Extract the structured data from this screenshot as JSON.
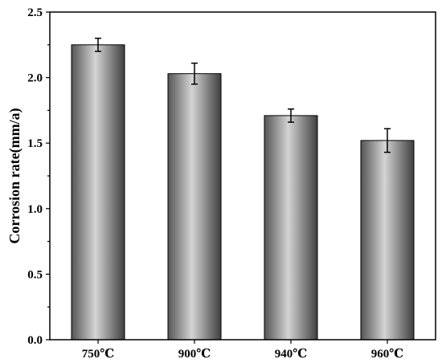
{
  "chart_data": {
    "type": "bar",
    "title": "",
    "xlabel": "",
    "ylabel": "Corrosion rate(mm/a)",
    "categories": [
      "750℃",
      "900℃",
      "940℃",
      "960℃"
    ],
    "values": [
      2.25,
      2.03,
      1.71,
      1.52
    ],
    "errors": [
      0.05,
      0.08,
      0.05,
      0.09
    ],
    "ylim": [
      0.0,
      2.5
    ],
    "yticks": [
      "0.0",
      "0.5",
      "1.0",
      "1.5",
      "2.0",
      "2.5"
    ],
    "ytick_values": [
      0.0,
      0.5,
      1.0,
      1.5,
      2.0,
      2.5
    ],
    "grid": false,
    "legend": "none",
    "colors": {
      "bar_dark": "#4a4a4a",
      "bar_light": "#d4d4d4",
      "axis": "#000000"
    }
  }
}
